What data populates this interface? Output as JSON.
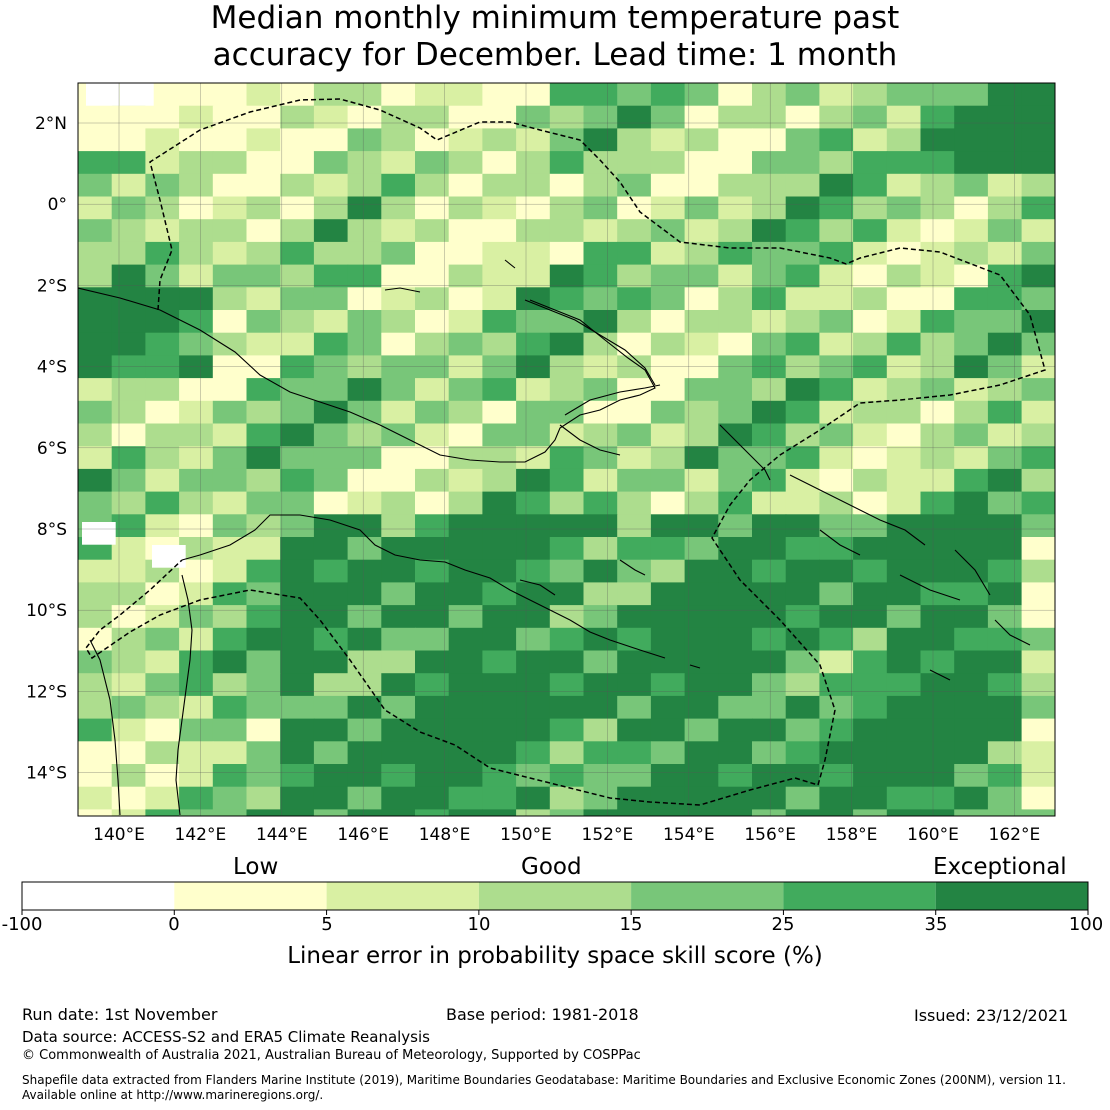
{
  "title": {
    "line1": "Median monthly minimum temperature past",
    "line2": "accuracy for December. Lead time: 1 month"
  },
  "map": {
    "lon_ticks": [
      "140°E",
      "142°E",
      "144°E",
      "146°E",
      "148°E",
      "150°E",
      "152°E",
      "154°E",
      "156°E",
      "158°E",
      "160°E",
      "162°E"
    ],
    "lat_ticks": [
      "2°N",
      "0°",
      "2°S",
      "4°S",
      "6°S",
      "8°S",
      "10°S",
      "12°S",
      "14°S"
    ],
    "colors": {
      "neg": "#ffffff",
      "c0": "#ffffcc",
      "c5": "#d9f0a3",
      "c10": "#addd8e",
      "c15": "#78c679",
      "c25": "#41ab5d",
      "c35": "#238443",
      "coast": "#000000",
      "eez": "#000000"
    }
  },
  "colorbar": {
    "words": [
      "Low",
      "Good",
      "Exceptional"
    ],
    "ticks": [
      "-100",
      "0",
      "5",
      "10",
      "15",
      "25",
      "35",
      "100"
    ],
    "label": "Linear error in probability space skill score (%)"
  },
  "footer": {
    "run_date": "Run date: 1st November",
    "base_period": "Base period: 1981-2018",
    "issued": "Issued: 23/12/2021",
    "data_source": "Data source: ACCESS-S2 and ERA5 Climate Reanalysis",
    "copyright": "© Commonwealth of Australia 2021, Australian Bureau of Meteorology, Supported by COSPPac",
    "shapefile1": "Shapefile data extracted from Flanders Marine Institute (2019), Maritime Boundaries Geodatabase: Maritime Boundaries and Exclusive Economic Zones (200NM), version 11.",
    "shapefile2": "Available online at http://www.marineregions.org/."
  }
}
